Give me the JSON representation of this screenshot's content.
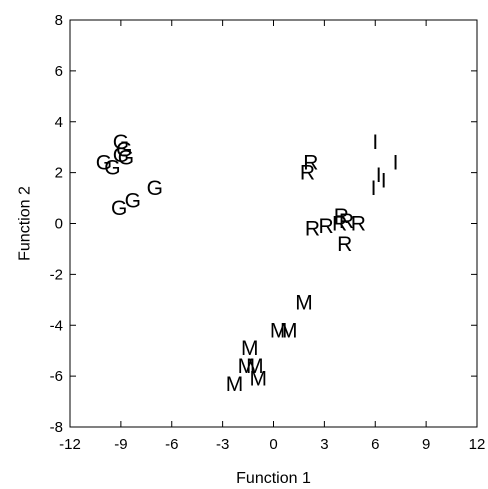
{
  "chart_data": {
    "type": "scatter",
    "title": "",
    "xlabel": "Function 1",
    "ylabel": "Function 2",
    "xlim": [
      -12,
      12
    ],
    "ylim": [
      -8,
      8
    ],
    "xticks": [
      -12,
      -9,
      -6,
      -3,
      0,
      3,
      6,
      9,
      12
    ],
    "yticks": [
      -8,
      -6,
      -4,
      -2,
      0,
      2,
      4,
      6,
      8
    ],
    "xtick_labels": [
      "-12",
      "-9",
      "-6",
      "-3",
      "0",
      "3",
      "6",
      "9",
      "12"
    ],
    "ytick_labels": [
      "-8",
      "-6",
      "-4",
      "-2",
      "0",
      "2",
      "4",
      "6",
      "8"
    ],
    "grid": false,
    "marker_labels": [
      "G",
      "R",
      "I",
      "M"
    ],
    "points": [
      {
        "x": -9.0,
        "y": 3.2,
        "label": "G"
      },
      {
        "x": -9.0,
        "y": 2.7,
        "label": "G"
      },
      {
        "x": -8.8,
        "y": 2.9,
        "label": "G"
      },
      {
        "x": -8.7,
        "y": 2.6,
        "label": "G"
      },
      {
        "x": -10.0,
        "y": 2.4,
        "label": "G"
      },
      {
        "x": -9.5,
        "y": 2.2,
        "label": "G"
      },
      {
        "x": -7.0,
        "y": 1.4,
        "label": "G"
      },
      {
        "x": -8.3,
        "y": 0.9,
        "label": "G"
      },
      {
        "x": -9.1,
        "y": 0.6,
        "label": "G"
      },
      {
        "x": 2.2,
        "y": 2.4,
        "label": "R"
      },
      {
        "x": 2.0,
        "y": 2.0,
        "label": "R"
      },
      {
        "x": 4.0,
        "y": 0.3,
        "label": "R"
      },
      {
        "x": 4.3,
        "y": 0.1,
        "label": "R"
      },
      {
        "x": 3.9,
        "y": 0.0,
        "label": "R"
      },
      {
        "x": 5.0,
        "y": 0.0,
        "label": "R"
      },
      {
        "x": 3.1,
        "y": -0.1,
        "label": "R"
      },
      {
        "x": 2.3,
        "y": -0.2,
        "label": "R"
      },
      {
        "x": 4.2,
        "y": -0.8,
        "label": "R"
      },
      {
        "x": 6.0,
        "y": 3.2,
        "label": "I"
      },
      {
        "x": 7.2,
        "y": 2.4,
        "label": "I"
      },
      {
        "x": 6.2,
        "y": 1.9,
        "label": "I"
      },
      {
        "x": 6.5,
        "y": 1.7,
        "label": "I"
      },
      {
        "x": 5.9,
        "y": 1.4,
        "label": "I"
      },
      {
        "x": 1.8,
        "y": -3.1,
        "label": "M"
      },
      {
        "x": 0.3,
        "y": -4.2,
        "label": "M"
      },
      {
        "x": 0.9,
        "y": -4.2,
        "label": "M"
      },
      {
        "x": -1.4,
        "y": -4.9,
        "label": "M"
      },
      {
        "x": -1.6,
        "y": -5.6,
        "label": "M"
      },
      {
        "x": -1.1,
        "y": -5.6,
        "label": "M"
      },
      {
        "x": -0.9,
        "y": -6.1,
        "label": "M"
      },
      {
        "x": -2.3,
        "y": -6.3,
        "label": "M"
      }
    ]
  }
}
